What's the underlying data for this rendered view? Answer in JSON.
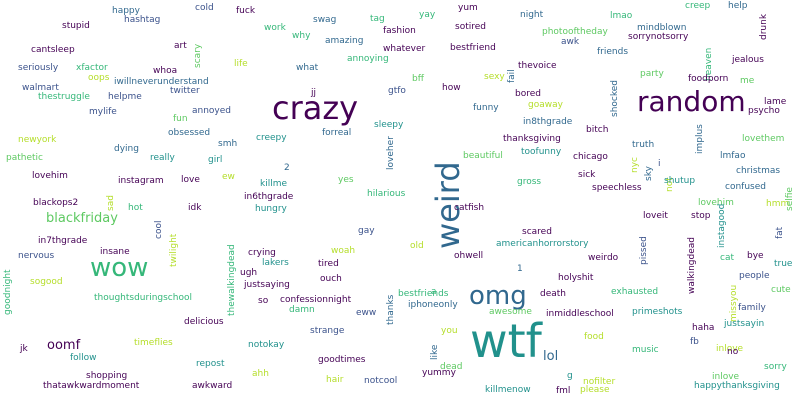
{
  "palette": {
    "dark_purple": "#440154",
    "indigo": "#3b528b",
    "blue": "#31688e",
    "teal": "#21918c",
    "green": "#35b779",
    "lime": "#5ec962",
    "yellow_green": "#b5de2b",
    "yellow": "#fde725"
  },
  "words": [
    {
      "text": "wtf"
    },
    {
      "text": "crazy"
    },
    {
      "text": "weird"
    },
    {
      "text": "random"
    },
    {
      "text": "wow"
    },
    {
      "text": "omg"
    },
    {
      "text": "blackfriday"
    },
    {
      "text": "oomf"
    },
    {
      "text": "lol"
    },
    {
      "text": "happy"
    },
    {
      "text": "hashtag"
    },
    {
      "text": "cold"
    },
    {
      "text": "fuck"
    },
    {
      "text": "yum"
    },
    {
      "text": "night"
    },
    {
      "text": "creep"
    },
    {
      "text": "help"
    },
    {
      "text": "drunk"
    },
    {
      "text": "stupid"
    },
    {
      "text": "work"
    },
    {
      "text": "swag"
    },
    {
      "text": "tag"
    },
    {
      "text": "yay"
    },
    {
      "text": "fashion"
    },
    {
      "text": "sotired"
    },
    {
      "text": "lmao"
    },
    {
      "text": "mindblown"
    },
    {
      "text": "sorrynotsorry"
    },
    {
      "text": "photooftheday"
    },
    {
      "text": "awk"
    },
    {
      "text": "why"
    },
    {
      "text": "amazing"
    },
    {
      "text": "bestfriend"
    },
    {
      "text": "friends"
    },
    {
      "text": "whatever"
    },
    {
      "text": "annoying"
    },
    {
      "text": "cantsleep"
    },
    {
      "text": "art"
    },
    {
      "text": "scary"
    },
    {
      "text": "heaven"
    },
    {
      "text": "jealous"
    },
    {
      "text": "seriously"
    },
    {
      "text": "xfactor"
    },
    {
      "text": "whoa"
    },
    {
      "text": "life"
    },
    {
      "text": "what"
    },
    {
      "text": "fail"
    },
    {
      "text": "thevoice"
    },
    {
      "text": "party"
    },
    {
      "text": "foodporn"
    },
    {
      "text": "me"
    },
    {
      "text": "walmart"
    },
    {
      "text": "oops"
    },
    {
      "text": "iwillneverunderstand"
    },
    {
      "text": "sexy"
    },
    {
      "text": "thestruggle"
    },
    {
      "text": "twitter"
    },
    {
      "text": "jj"
    },
    {
      "text": "gtfo"
    },
    {
      "text": "how"
    },
    {
      "text": "bff"
    },
    {
      "text": "bored"
    },
    {
      "text": "goaway"
    },
    {
      "text": "shocked"
    },
    {
      "text": "lame"
    },
    {
      "text": "helpme"
    },
    {
      "text": "psycho"
    },
    {
      "text": "mylife"
    },
    {
      "text": "annoyed"
    },
    {
      "text": "funny"
    },
    {
      "text": "in8thgrade"
    },
    {
      "text": "fun"
    },
    {
      "text": "obsessed"
    },
    {
      "text": "creepy"
    },
    {
      "text": "forreal"
    },
    {
      "text": "sleepy"
    },
    {
      "text": "bitch"
    },
    {
      "text": "i"
    },
    {
      "text": "lovethem"
    },
    {
      "text": "newyork"
    },
    {
      "text": "smh"
    },
    {
      "text": "thanksgiving"
    },
    {
      "text": "truth"
    },
    {
      "text": "implus"
    },
    {
      "text": "dying"
    },
    {
      "text": "loveher"
    },
    {
      "text": "toofunny"
    },
    {
      "text": "nyc"
    },
    {
      "text": "lmfao"
    },
    {
      "text": "pathetic"
    },
    {
      "text": "really"
    },
    {
      "text": "girl"
    },
    {
      "text": "beautiful"
    },
    {
      "text": "chicago"
    },
    {
      "text": "sky"
    },
    {
      "text": "christmas"
    },
    {
      "text": "lovehim"
    },
    {
      "text": "instagram"
    },
    {
      "text": "love"
    },
    {
      "text": "ew"
    },
    {
      "text": "2"
    },
    {
      "text": "sick"
    },
    {
      "text": "not"
    },
    {
      "text": "shutup"
    },
    {
      "text": "confused"
    },
    {
      "text": "blackops2"
    },
    {
      "text": "sad"
    },
    {
      "text": "killme"
    },
    {
      "text": "yes"
    },
    {
      "text": "hilarious"
    },
    {
      "text": "gross"
    },
    {
      "text": "speechless"
    },
    {
      "text": "lovehim"
    },
    {
      "text": "in6thgrade"
    },
    {
      "text": "hot"
    },
    {
      "text": "idk"
    },
    {
      "text": "hungry"
    },
    {
      "text": "catfish"
    },
    {
      "text": "loveit"
    },
    {
      "text": "stop"
    },
    {
      "text": "instagood"
    },
    {
      "text": "fat"
    },
    {
      "text": "hmm"
    },
    {
      "text": "selfie"
    },
    {
      "text": "cool"
    },
    {
      "text": "in7thgrade"
    },
    {
      "text": "twilight"
    },
    {
      "text": "thewalkingdead"
    },
    {
      "text": "gay"
    },
    {
      "text": "scared"
    },
    {
      "text": "pissed"
    },
    {
      "text": "walkingdead"
    },
    {
      "text": "nervous"
    },
    {
      "text": "insane"
    },
    {
      "text": "crying"
    },
    {
      "text": "woah"
    },
    {
      "text": "old"
    },
    {
      "text": "americanhorrorstory"
    },
    {
      "text": "cat"
    },
    {
      "text": "bye"
    },
    {
      "text": "true"
    },
    {
      "text": "sogood"
    },
    {
      "text": "ugh"
    },
    {
      "text": "lakers"
    },
    {
      "text": "tired"
    },
    {
      "text": "ohwell"
    },
    {
      "text": "weirdo"
    },
    {
      "text": "people"
    },
    {
      "text": "justsaying"
    },
    {
      "text": "ouch"
    },
    {
      "text": "1"
    },
    {
      "text": "holyshit"
    },
    {
      "text": "missyou"
    },
    {
      "text": "cute"
    },
    {
      "text": "goodnight"
    },
    {
      "text": "thoughtsduringschool"
    },
    {
      "text": "bestfriends"
    },
    {
      "text": "so"
    },
    {
      "text": "confessionnight"
    },
    {
      "text": "thanks"
    },
    {
      "text": "a"
    },
    {
      "text": "death"
    },
    {
      "text": "exhausted"
    },
    {
      "text": "family"
    },
    {
      "text": "damn"
    },
    {
      "text": "delicious"
    },
    {
      "text": "eww"
    },
    {
      "text": "iphoneonly"
    },
    {
      "text": "awesome"
    },
    {
      "text": "inmiddleschool"
    },
    {
      "text": "primeshots"
    },
    {
      "text": "justsayin"
    },
    {
      "text": "strange"
    },
    {
      "text": "you"
    },
    {
      "text": "haha"
    },
    {
      "text": "jk"
    },
    {
      "text": "timeflies"
    },
    {
      "text": "notokay"
    },
    {
      "text": "like"
    },
    {
      "text": "food"
    },
    {
      "text": "fb"
    },
    {
      "text": "inlove"
    },
    {
      "text": "follow"
    },
    {
      "text": "goodtimes"
    },
    {
      "text": "music"
    },
    {
      "text": "no"
    },
    {
      "text": "repost"
    },
    {
      "text": "dead"
    },
    {
      "text": "sorry"
    },
    {
      "text": "shopping"
    },
    {
      "text": "ahh"
    },
    {
      "text": "yummy"
    },
    {
      "text": "g"
    },
    {
      "text": "inlove"
    },
    {
      "text": "thatawkwardmoment"
    },
    {
      "text": "awkward"
    },
    {
      "text": "hair"
    },
    {
      "text": "notcool"
    },
    {
      "text": "killmenow"
    },
    {
      "text": "fml"
    },
    {
      "text": "nofilter"
    },
    {
      "text": "please"
    },
    {
      "text": "happythanksgiving"
    }
  ]
}
